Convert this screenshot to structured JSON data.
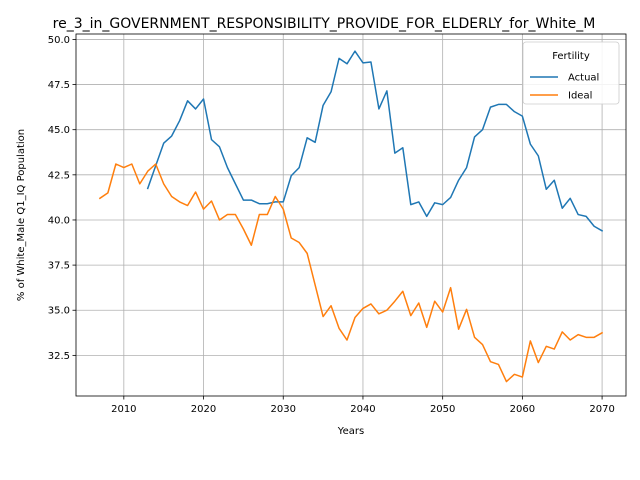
{
  "chart_data": {
    "type": "line",
    "title": "re_3_in_GOVERNMENT_RESPONSIBILITY_PROVIDE_FOR_ELDERLY_for_White_M",
    "xlabel": "Years",
    "ylabel": "% of White_Male Q1_IQ Population",
    "xlim": [
      2004,
      2073
    ],
    "ylim": [
      30.25,
      50.3
    ],
    "xticks": [
      2010,
      2020,
      2030,
      2040,
      2050,
      2060,
      2070
    ],
    "yticks": [
      32.5,
      35.0,
      37.5,
      40.0,
      42.5,
      45.0,
      47.5,
      50.0
    ],
    "ytick_labels": [
      "32.5",
      "35.0",
      "37.5",
      "40.0",
      "42.5",
      "45.0",
      "47.5",
      "50.0"
    ],
    "grid": true,
    "legend": {
      "title": "Fertility",
      "position": "top-right"
    },
    "series": [
      {
        "name": "Actual",
        "color": "#1f77b4",
        "x": [
          2013,
          2014,
          2015,
          2016,
          2017,
          2018,
          2019,
          2020,
          2021,
          2022,
          2023,
          2024,
          2025,
          2026,
          2027,
          2028,
          2029,
          2030,
          2031,
          2032,
          2033,
          2034,
          2035,
          2036,
          2037,
          2038,
          2039,
          2040,
          2041,
          2042,
          2043,
          2044,
          2045,
          2046,
          2047,
          2048,
          2049,
          2050,
          2051,
          2052,
          2053,
          2054,
          2055,
          2056,
          2057,
          2058,
          2059,
          2060,
          2061,
          2062,
          2063,
          2064,
          2065,
          2066,
          2067,
          2068,
          2069,
          2070
        ],
        "y": [
          41.75,
          43.0,
          44.25,
          44.65,
          45.5,
          46.6,
          46.15,
          46.7,
          44.45,
          44.05,
          42.9,
          42.0,
          41.1,
          41.1,
          40.9,
          40.9,
          41.0,
          41.0,
          42.45,
          42.9,
          44.55,
          44.3,
          46.35,
          47.1,
          48.95,
          48.65,
          49.35,
          48.7,
          48.75,
          46.15,
          47.15,
          43.7,
          44.0,
          40.85,
          41.0,
          40.2,
          40.95,
          40.85,
          41.25,
          42.2,
          42.9,
          44.6,
          45.0,
          46.25,
          46.4,
          46.4,
          46.0,
          45.75,
          44.2,
          43.55,
          41.7,
          42.2,
          40.65,
          41.2,
          40.3,
          40.2,
          39.65,
          39.4
        ]
      },
      {
        "name": "Ideal",
        "color": "#ff7f0e",
        "x": [
          2007,
          2008,
          2009,
          2010,
          2011,
          2012,
          2013,
          2014,
          2015,
          2016,
          2017,
          2018,
          2019,
          2020,
          2021,
          2022,
          2023,
          2024,
          2025,
          2026,
          2027,
          2028,
          2029,
          2030,
          2031,
          2032,
          2033,
          2034,
          2035,
          2036,
          2037,
          2038,
          2039,
          2040,
          2041,
          2042,
          2043,
          2044,
          2045,
          2046,
          2047,
          2048,
          2049,
          2050,
          2051,
          2052,
          2053,
          2054,
          2055,
          2056,
          2057,
          2058,
          2059,
          2060,
          2061,
          2062,
          2063,
          2064,
          2065,
          2066,
          2067,
          2068,
          2069,
          2070
        ],
        "y": [
          41.2,
          41.5,
          43.1,
          42.9,
          43.1,
          42.0,
          42.7,
          43.1,
          42.0,
          41.3,
          41.0,
          40.8,
          41.55,
          40.6,
          41.05,
          40.0,
          40.3,
          40.3,
          39.5,
          38.6,
          40.3,
          40.3,
          41.3,
          40.6,
          39.0,
          38.75,
          38.15,
          36.4,
          34.65,
          35.25,
          34.0,
          33.35,
          34.6,
          35.1,
          35.35,
          34.8,
          35.0,
          35.5,
          36.05,
          34.7,
          35.4,
          34.05,
          35.5,
          34.9,
          36.25,
          33.95,
          35.05,
          33.5,
          33.1,
          32.15,
          32.0,
          31.05,
          31.45,
          31.3,
          33.3,
          32.1,
          33.0,
          32.85,
          33.8,
          33.35,
          33.65,
          33.5,
          33.5,
          33.75
        ]
      }
    ]
  }
}
